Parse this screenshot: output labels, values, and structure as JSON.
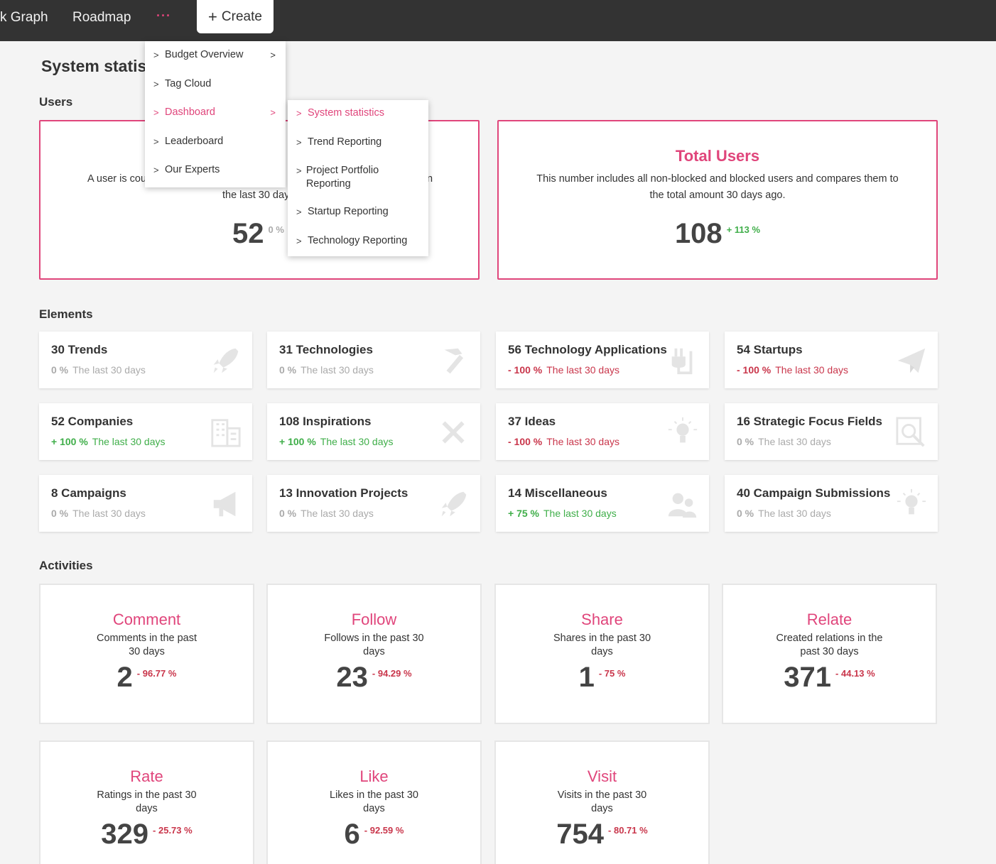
{
  "nav": {
    "links": [
      "k Graph",
      "Roadmap"
    ],
    "more_label": "···",
    "create_label": "Create"
  },
  "page": {
    "title": "System statist"
  },
  "sections": {
    "users": "Users",
    "elements": "Elements",
    "activities": "Activities"
  },
  "users": {
    "active": {
      "desc_left": "A user is cou",
      "desc_right": "n",
      "desc_line2": "the last 30 day",
      "value": "52",
      "pct": "0 %"
    },
    "total": {
      "title": "Total Users",
      "desc": "This number includes all non-blocked and blocked users and compares them to the total amount 30 days ago.",
      "value": "108",
      "pct": "+ 113 %"
    }
  },
  "elements": [
    {
      "name": "30 Trends",
      "pct": "0 %",
      "period": "The last 30 days",
      "trend": "zero",
      "icon": "rocket-icon"
    },
    {
      "name": "31 Technologies",
      "pct": "0 %",
      "period": "The last 30 days",
      "trend": "zero",
      "icon": "hammer-icon"
    },
    {
      "name": "56 Technology Applications",
      "pct": "- 100 %",
      "period": "The last 30 days",
      "trend": "neg",
      "icon": "plug-icon"
    },
    {
      "name": "54 Startups",
      "pct": "- 100 %",
      "period": "The last 30 days",
      "trend": "neg",
      "icon": "paper-plane-icon"
    },
    {
      "name": "52 Companies",
      "pct": "+ 100 %",
      "period": "The last 30 days",
      "trend": "pos",
      "icon": "building-icon"
    },
    {
      "name": "108 Inspirations",
      "pct": "+ 100 %",
      "period": "The last 30 days",
      "trend": "pos",
      "icon": "tools-icon"
    },
    {
      "name": "37 Ideas",
      "pct": "- 100 %",
      "period": "The last 30 days",
      "trend": "neg",
      "icon": "lightbulb-icon"
    },
    {
      "name": "16 Strategic Focus Fields",
      "pct": "0 %",
      "period": "The last 30 days",
      "trend": "zero",
      "icon": "magnifier-icon"
    },
    {
      "name": "8 Campaigns",
      "pct": "0 %",
      "period": "The last 30 days",
      "trend": "zero",
      "icon": "megaphone-icon"
    },
    {
      "name": "13 Innovation Projects",
      "pct": "0 %",
      "period": "The last 30 days",
      "trend": "zero",
      "icon": "rocket-icon"
    },
    {
      "name": "14 Miscellaneous",
      "pct": "+ 75 %",
      "period": "The last 30 days",
      "trend": "pos",
      "icon": "users-icon"
    },
    {
      "name": "40 Campaign Submissions",
      "pct": "0 %",
      "period": "The last 30 days",
      "trend": "zero",
      "icon": "lightbulb-icon"
    }
  ],
  "activities": [
    {
      "title": "Comment",
      "desc": "Comments in the past 30 days",
      "value": "2",
      "pct": "- 96.77 %"
    },
    {
      "title": "Follow",
      "desc": "Follows in the past 30 days",
      "value": "23",
      "pct": "- 94.29 %"
    },
    {
      "title": "Share",
      "desc": "Shares in the past 30 days",
      "value": "1",
      "pct": "- 75 %"
    },
    {
      "title": "Relate",
      "desc": "Created relations in the past 30 days",
      "value": "371",
      "pct": "- 44.13 %"
    },
    {
      "title": "Rate",
      "desc": "Ratings in the past 30 days",
      "value": "329",
      "pct": "- 25.73 %"
    },
    {
      "title": "Like",
      "desc": "Likes in the past 30 days",
      "value": "6",
      "pct": "- 92.59 %"
    },
    {
      "title": "Visit",
      "desc": "Visits in the past 30 days",
      "value": "754",
      "pct": "- 80.71 %"
    }
  ],
  "menu": {
    "items": [
      "Budget Overview",
      "Tag Cloud",
      "Dashboard",
      "Leaderboard",
      "Our Experts"
    ],
    "submenu": [
      "System statistics",
      "Trend Reporting",
      "Project Portfolio Reporting",
      "Startup Reporting",
      "Technology Reporting"
    ]
  },
  "colors": {
    "accent": "#e0457b",
    "positive": "#3fae49",
    "negative": "#c9364b",
    "topbar": "#333333"
  }
}
